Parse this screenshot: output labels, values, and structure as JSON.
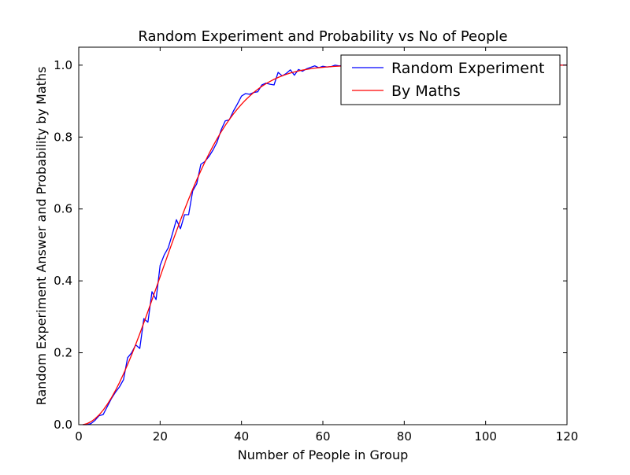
{
  "chart_data": {
    "type": "line",
    "title": "Random Experiment and Probability vs No of People",
    "xlabel": "Number of People in Group",
    "ylabel": "Random Experiment Answer and Probability by Maths",
    "xlim": [
      0,
      120
    ],
    "ylim": [
      0.0,
      1.05
    ],
    "xticks": [
      "0",
      "20",
      "40",
      "60",
      "80",
      "100",
      "120"
    ],
    "yticks": [
      "0.0",
      "0.2",
      "0.4",
      "0.6",
      "0.8",
      "1.0"
    ],
    "grid": false,
    "legend_position": "top-right",
    "series": [
      {
        "name": "Random Experiment",
        "color": "#0000ff",
        "x": [
          1,
          2,
          3,
          4,
          5,
          6,
          7,
          8,
          9,
          10,
          11,
          12,
          13,
          14,
          15,
          16,
          17,
          18,
          19,
          20,
          21,
          22,
          23,
          24,
          25,
          26,
          27,
          28,
          29,
          30,
          31,
          32,
          33,
          34,
          35,
          36,
          37,
          38,
          39,
          40,
          41,
          42,
          43,
          44,
          45,
          46,
          47,
          48,
          49,
          50,
          51,
          52,
          53,
          54,
          55,
          56,
          57,
          58,
          59,
          60,
          61,
          62,
          63,
          64,
          65,
          66,
          67,
          68,
          69,
          70,
          71,
          72,
          73,
          74,
          75,
          76,
          77,
          78,
          79,
          80,
          81,
          82,
          83,
          84,
          85,
          86,
          87,
          88,
          89,
          90,
          91,
          92,
          93,
          94,
          95,
          96,
          97,
          98,
          99,
          100,
          101,
          102,
          103,
          104,
          105,
          106,
          107,
          108,
          109,
          110,
          111,
          112,
          113,
          114,
          115,
          116,
          117,
          118,
          119,
          120
        ],
        "y": [
          0.0,
          0.0,
          0.003,
          0.012,
          0.025,
          0.028,
          0.05,
          0.072,
          0.09,
          0.105,
          0.125,
          0.186,
          0.2,
          0.222,
          0.212,
          0.295,
          0.285,
          0.37,
          0.348,
          0.443,
          0.472,
          0.492,
          0.53,
          0.57,
          0.545,
          0.584,
          0.584,
          0.65,
          0.67,
          0.724,
          0.732,
          0.746,
          0.764,
          0.786,
          0.82,
          0.845,
          0.848,
          0.872,
          0.892,
          0.914,
          0.921,
          0.919,
          0.924,
          0.926,
          0.945,
          0.95,
          0.947,
          0.945,
          0.98,
          0.97,
          0.977,
          0.987,
          0.972,
          0.988,
          0.983,
          0.99,
          0.994,
          0.998,
          0.993,
          0.997,
          0.995,
          0.996,
          1.0,
          0.998,
          0.999,
          0.999,
          1.0,
          1.0,
          1.0,
          1.0,
          1.0,
          1.0,
          1.0,
          1.0,
          1.0,
          1.0,
          1.0,
          1.0,
          1.0,
          1.0,
          1.0,
          1.0,
          1.0,
          1.0,
          1.0,
          1.0,
          1.0,
          1.0,
          1.0,
          1.0,
          1.0,
          1.0,
          1.0,
          1.0,
          1.0,
          1.0,
          1.0,
          1.0,
          1.0,
          1.0,
          1.0,
          1.0,
          1.0,
          1.0,
          1.0,
          1.0,
          1.0,
          1.0,
          1.0,
          1.0,
          1.0,
          1.0,
          1.0,
          1.0,
          1.0,
          1.0,
          1.0,
          1.0,
          1.0,
          1.0
        ]
      },
      {
        "name": "By Maths",
        "color": "#ff0000",
        "x": [
          1,
          2,
          3,
          4,
          5,
          6,
          7,
          8,
          9,
          10,
          11,
          12,
          13,
          14,
          15,
          16,
          17,
          18,
          19,
          20,
          21,
          22,
          23,
          24,
          25,
          26,
          27,
          28,
          29,
          30,
          31,
          32,
          33,
          34,
          35,
          36,
          37,
          38,
          39,
          40,
          41,
          42,
          43,
          44,
          45,
          46,
          47,
          48,
          49,
          50,
          51,
          52,
          53,
          54,
          55,
          56,
          57,
          58,
          59,
          60,
          61,
          62,
          63,
          64,
          65,
          66,
          67,
          68,
          69,
          70,
          71,
          72,
          73,
          74,
          75,
          76,
          77,
          78,
          79,
          80,
          81,
          82,
          83,
          84,
          85,
          86,
          87,
          88,
          89,
          90,
          91,
          92,
          93,
          94,
          95,
          96,
          97,
          98,
          99,
          100,
          101,
          102,
          103,
          104,
          105,
          106,
          107,
          108,
          109,
          110,
          111,
          112,
          113,
          114,
          115,
          116,
          117,
          118,
          119,
          120
        ],
        "y": [
          0.0,
          0.0027,
          0.0082,
          0.0164,
          0.0271,
          0.0405,
          0.0562,
          0.0743,
          0.0946,
          0.1169,
          0.1411,
          0.167,
          0.1944,
          0.2231,
          0.2529,
          0.2836,
          0.315,
          0.3469,
          0.3791,
          0.4114,
          0.4437,
          0.4757,
          0.5073,
          0.5383,
          0.5687,
          0.5982,
          0.6269,
          0.6545,
          0.681,
          0.7063,
          0.7305,
          0.7533,
          0.775,
          0.7953,
          0.8144,
          0.8322,
          0.8487,
          0.8641,
          0.8782,
          0.8912,
          0.9032,
          0.914,
          0.9239,
          0.9329,
          0.941,
          0.9483,
          0.9548,
          0.9606,
          0.9658,
          0.9704,
          0.9744,
          0.978,
          0.9811,
          0.9839,
          0.9863,
          0.9883,
          0.9901,
          0.9917,
          0.993,
          0.9941,
          0.9951,
          0.9959,
          0.9966,
          0.9972,
          0.9977,
          0.9981,
          0.9984,
          0.9987,
          0.999,
          0.9992,
          0.9993,
          0.9995,
          0.9996,
          0.9997,
          0.9997,
          0.9998,
          0.9998,
          0.9999,
          0.9999,
          0.9999,
          0.9999,
          1.0,
          1.0,
          1.0,
          1.0,
          1.0,
          1.0,
          1.0,
          1.0,
          1.0,
          1.0,
          1.0,
          1.0,
          1.0,
          1.0,
          1.0,
          1.0,
          1.0,
          1.0,
          1.0,
          1.0,
          1.0,
          1.0,
          1.0,
          1.0,
          1.0,
          1.0,
          1.0,
          1.0,
          1.0,
          1.0,
          1.0,
          1.0,
          1.0,
          1.0,
          1.0,
          1.0,
          1.0,
          1.0,
          1.0
        ]
      }
    ]
  }
}
